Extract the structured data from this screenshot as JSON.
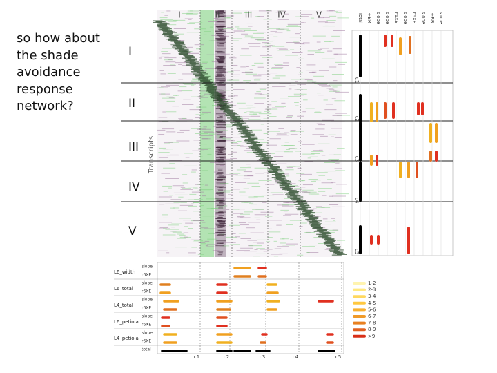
{
  "slide": {
    "text": "so how about the shade avoidance response network?",
    "row_labels": [
      "I",
      "II",
      "III",
      "IV",
      "V"
    ],
    "column_labels": [
      "I",
      "II",
      "III",
      "IV",
      "V"
    ],
    "axis_label": "Transcripts",
    "right_panel": {
      "column_labels": [
        "Total",
        "+BR",
        "slope",
        "slope",
        "r6XE",
        "slope",
        "r6XE",
        "slope",
        "+BR",
        "slope"
      ],
      "cluster_labels": [
        "c1",
        "c2",
        "c3",
        "c4",
        "c5"
      ]
    },
    "bottom_panel": {
      "trait_labels": [
        "L6_width",
        "L6_total",
        "L4_total",
        "L6_petiola",
        "L4_petiola"
      ],
      "sub_labels": [
        "slope",
        "r6XE",
        "slope",
        "r6XE",
        "slope",
        "r6XE",
        "slope",
        "r6XE",
        "slope",
        "r6XE",
        "total"
      ],
      "cluster_labels": [
        "c1",
        "c2",
        "c3",
        "c4",
        "c5"
      ]
    },
    "legend": [
      "1-2",
      "2-3",
      "3-4",
      "4-5",
      "5-6",
      "6-7",
      "7-8",
      "8-9",
      ">9"
    ]
  }
}
